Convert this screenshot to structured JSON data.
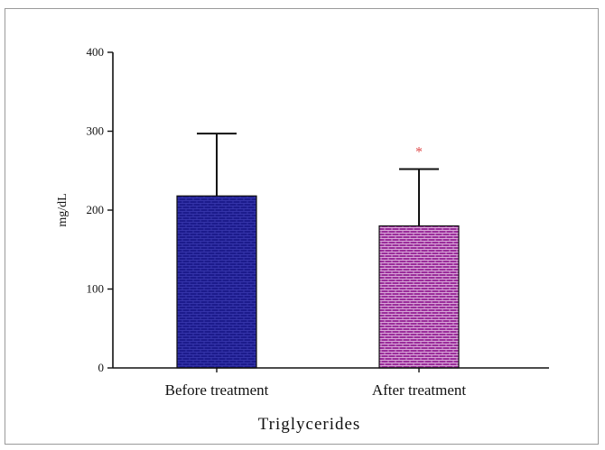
{
  "chart_data": {
    "type": "bar",
    "title": "",
    "xlabel": "Triglycerides",
    "ylabel": "mg/dL",
    "ylim": [
      0,
      400
    ],
    "yticks": [
      0,
      100,
      200,
      300,
      400
    ],
    "categories": [
      "Before treatment",
      "After treatment"
    ],
    "values": [
      218,
      180
    ],
    "error_upper": [
      297,
      252
    ],
    "bar_colors": [
      "#1c1b8c",
      "#9a2d9a"
    ],
    "annotations": [
      {
        "category": "After treatment",
        "text": "*",
        "color": "#e05050"
      }
    ],
    "grid": false,
    "legend": "none"
  }
}
